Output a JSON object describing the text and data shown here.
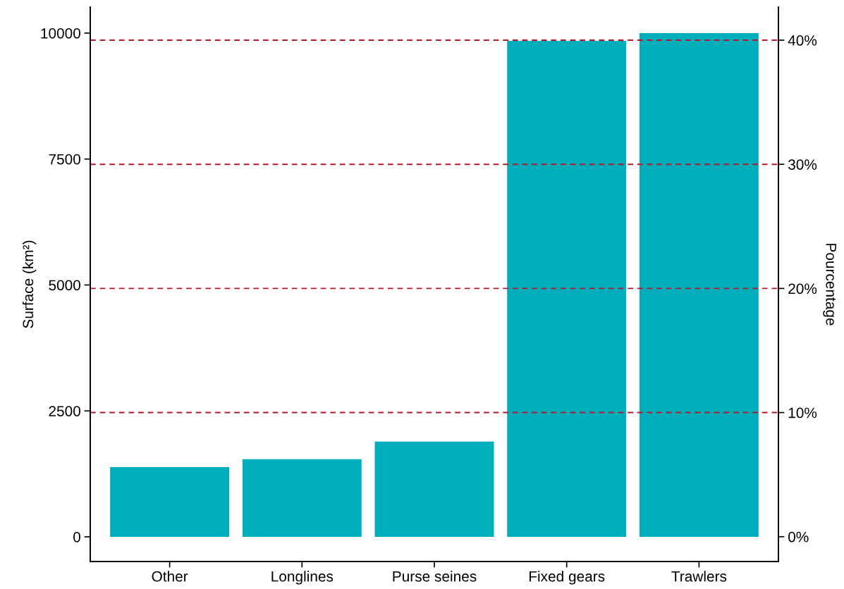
{
  "chart_data": {
    "type": "bar",
    "categories": [
      "Other",
      "Longlines",
      "Purse seines",
      "Fixed gears",
      "Trawlers"
    ],
    "values": [
      1385,
      1540,
      1890,
      9846,
      10000
    ],
    "color": "#00aebb",
    "ylabel": "Surface (km²)",
    "y2label": "Pourcentage",
    "ylim": [
      -490,
      10517
    ],
    "yticks": [
      0,
      2500,
      5000,
      7500,
      10000
    ],
    "y2lim": [
      -2.0,
      42.67
    ],
    "y2ticks": [
      {
        "value": 0,
        "label": "0%"
      },
      {
        "value": 10,
        "label": "10%"
      },
      {
        "value": 20,
        "label": "20%"
      },
      {
        "value": 30,
        "label": "30%"
      },
      {
        "value": 40,
        "label": "40%"
      }
    ],
    "ref_lines": [
      {
        "axis": "y2",
        "value": 10,
        "color": "#b2182b",
        "line_style": "dashed"
      },
      {
        "axis": "y2",
        "value": 20,
        "color": "#b2182b",
        "line_style": "dashed"
      },
      {
        "axis": "y2",
        "value": 30,
        "color": "#b2182b",
        "line_style": "dashed"
      },
      {
        "axis": "y2",
        "value": 40,
        "color": "#b2182b",
        "line_style": "dashed"
      }
    ],
    "grid": false,
    "legend": false
  }
}
